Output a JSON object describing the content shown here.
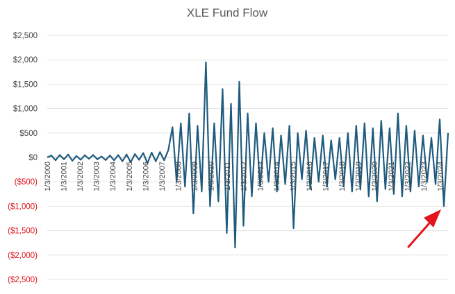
{
  "chart_data": {
    "type": "line",
    "title": "XLE Fund Flow",
    "xlabel": "",
    "ylabel": "",
    "ylim": [
      -2500,
      2500
    ],
    "y_ticks": [
      2500,
      2000,
      1500,
      1000,
      500,
      0,
      -500,
      -1000,
      -1500,
      -2000,
      -2500
    ],
    "y_tick_labels": [
      "$2,500",
      "$2,000",
      "$1,500",
      "$1,000",
      "$500",
      "$0",
      "($500)",
      "($1,000)",
      "($1,500)",
      "($2,000)",
      "($2,500)"
    ],
    "x_tick_labels": [
      "1/3/2000",
      "1/3/2001",
      "1/3/2002",
      "1/3/2003",
      "1/3/2004",
      "1/3/2005",
      "1/3/2006",
      "1/3/2007",
      "1/3/2008",
      "1/3/2009",
      "1/3/2010",
      "1/3/2011",
      "1/3/2012",
      "1/3/2013",
      "1/3/2014",
      "1/3/2015",
      "1/3/2016",
      "1/3/2017",
      "1/3/2018",
      "1/3/2019",
      "1/3/2020",
      "1/3/2021",
      "1/3/2022",
      "1/3/2023",
      "1/3/2024"
    ],
    "grid": "horizontal",
    "legend": "none",
    "series": [
      {
        "color": "#1f5b7e",
        "x_start": "2000-01-03",
        "x_end": "2024-06-30",
        "values": [
          0,
          40,
          -60,
          50,
          -40,
          60,
          -70,
          30,
          -50,
          45,
          -30,
          50,
          -40,
          20,
          -55,
          40,
          -60,
          50,
          -80,
          60,
          -100,
          70,
          -50,
          90,
          -120,
          100,
          -80,
          110,
          -60,
          150,
          620,
          -500,
          700,
          -600,
          900,
          -1150,
          650,
          -700,
          1950,
          -1000,
          700,
          -900,
          1400,
          -1550,
          1100,
          -1850,
          1550,
          -1400,
          900,
          -800,
          700,
          -600,
          500,
          -500,
          600,
          -700,
          450,
          -550,
          650,
          -1450,
          500,
          -450,
          550,
          -650,
          400,
          -500,
          450,
          -600,
          350,
          -450,
          400,
          -600,
          500,
          -700,
          650,
          -650,
          700,
          -800,
          600,
          -900,
          750,
          -650,
          600,
          -750,
          900,
          -800,
          650,
          -700,
          550,
          -600,
          450,
          -500,
          400,
          -550,
          780,
          -1000,
          500
        ]
      }
    ],
    "annotations": [
      {
        "type": "arrow",
        "color": "#e3141b",
        "points_to": "1/3/2024"
      }
    ]
  }
}
